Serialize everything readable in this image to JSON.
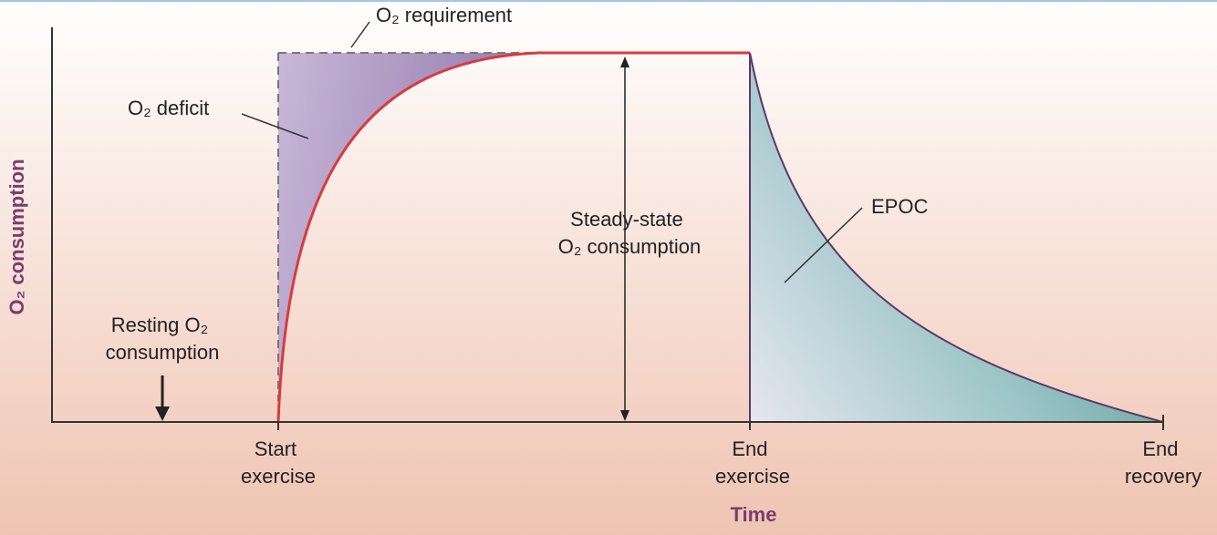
{
  "diagram": {
    "y_axis_label": "O₂ consumption",
    "x_axis_label": "Time",
    "x_labels": [
      [
        "Start",
        "exercise"
      ],
      [
        "End",
        "exercise"
      ],
      [
        "End",
        "recovery"
      ]
    ],
    "annotations": {
      "requirement": "O₂ requirement",
      "deficit": "O₂ deficit",
      "steady_state": [
        "Steady-state",
        "O₂ consumption"
      ],
      "epoc": "EPOC",
      "resting": [
        "Resting O₂",
        "consumption"
      ]
    }
  }
}
